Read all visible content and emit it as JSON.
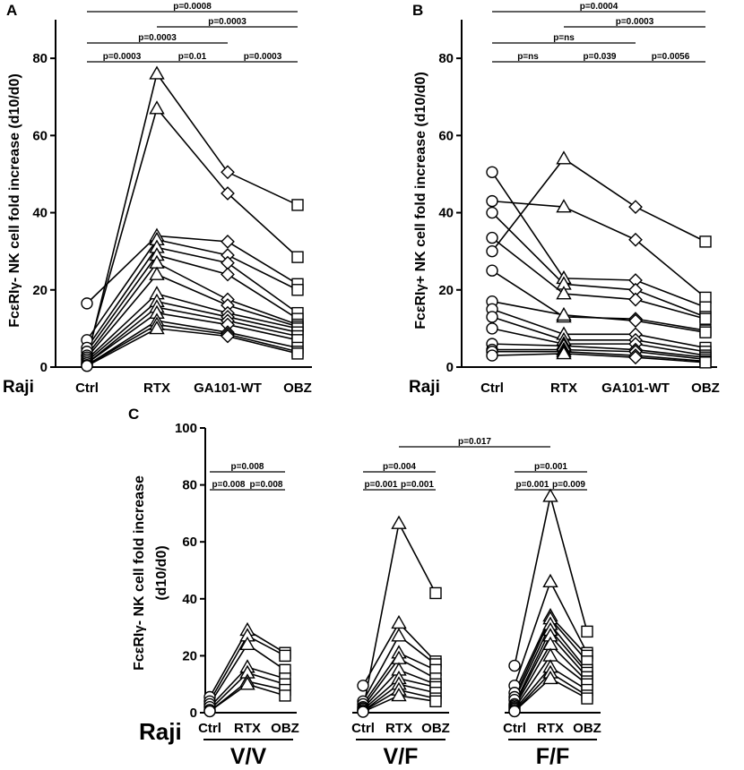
{
  "chart_data": [
    {
      "panel": "A",
      "type": "line",
      "title": "",
      "xlabel_prefix": "Raji",
      "ylabel_parts": [
        "Fc",
        "ε",
        "RI",
        "γ",
        "- NK cell fold increase (d10/d0)"
      ],
      "categories": [
        "Ctrl",
        "RTX",
        "GA101-WT",
        "OBZ"
      ],
      "markers": [
        "circle",
        "triangle",
        "diamond",
        "square"
      ],
      "ylim": [
        0,
        90
      ],
      "yticks": [
        0,
        20,
        40,
        60,
        80
      ],
      "series": [
        [
          2,
          76,
          50.5,
          42
        ],
        [
          3,
          67,
          45,
          28.5
        ],
        [
          16.5,
          34,
          32.5,
          21.5
        ],
        [
          7,
          33,
          29,
          20
        ],
        [
          5,
          31,
          27,
          14
        ],
        [
          4,
          29,
          24,
          12.5
        ],
        [
          3,
          27,
          17.5,
          11
        ],
        [
          2.5,
          24,
          16,
          10.5
        ],
        [
          2,
          19,
          14,
          10
        ],
        [
          1.5,
          17,
          13,
          9
        ],
        [
          1,
          15.5,
          12,
          8
        ],
        [
          1,
          14,
          11,
          7
        ],
        [
          0.5,
          12,
          9,
          5
        ],
        [
          0.5,
          11,
          8.5,
          4
        ],
        [
          0.3,
          10,
          8,
          3.5
        ]
      ],
      "comparisons": [
        {
          "from": "Ctrl",
          "to": "OBZ",
          "label": "p=0.0008"
        },
        {
          "from": "RTX",
          "to": "OBZ",
          "label": "p=0.0003"
        },
        {
          "from": "Ctrl",
          "to": "GA101-WT",
          "label": "p=0.0003"
        },
        {
          "from": "Ctrl",
          "to": "RTX",
          "label": "p=0.0003"
        },
        {
          "from": "RTX",
          "to": "GA101-WT",
          "label": "p=0.01"
        },
        {
          "from": "GA101-WT",
          "to": "OBZ",
          "label": "p=0.0003"
        }
      ]
    },
    {
      "panel": "B",
      "type": "line",
      "title": "",
      "xlabel_prefix": "Raji",
      "ylabel_parts": [
        "Fc",
        "ε",
        "RI",
        "γ",
        "+ NK cell fold increase (d10/d0)"
      ],
      "categories": [
        "Ctrl",
        "RTX",
        "GA101-WT",
        "OBZ"
      ],
      "markers": [
        "circle",
        "triangle",
        "diamond",
        "square"
      ],
      "ylim": [
        0,
        90
      ],
      "yticks": [
        0,
        20,
        40,
        60,
        80
      ],
      "series": [
        [
          30,
          54,
          41.5,
          32.5
        ],
        [
          43,
          41.5,
          33,
          18
        ],
        [
          50.5,
          23,
          22.5,
          15.5
        ],
        [
          40,
          21.5,
          20,
          13
        ],
        [
          33.5,
          19,
          17.5,
          12.5
        ],
        [
          25,
          13,
          12.5,
          9.5
        ],
        [
          17,
          13.5,
          12,
          9
        ],
        [
          15,
          8.5,
          8.5,
          5
        ],
        [
          13,
          7,
          7,
          4
        ],
        [
          10,
          6,
          6,
          3
        ],
        [
          6,
          5.5,
          4.5,
          2.5
        ],
        [
          4.5,
          4.5,
          4,
          2
        ],
        [
          4,
          4,
          3,
          1.5
        ],
        [
          3,
          3.5,
          2.5,
          1.2
        ]
      ],
      "comparisons": [
        {
          "from": "Ctrl",
          "to": "OBZ",
          "label": "p=0.0004"
        },
        {
          "from": "RTX",
          "to": "OBZ",
          "label": "p=0.0003"
        },
        {
          "from": "Ctrl",
          "to": "GA101-WT",
          "label": "p=ns"
        },
        {
          "from": "Ctrl",
          "to": "RTX",
          "label": "p=ns"
        },
        {
          "from": "RTX",
          "to": "GA101-WT",
          "label": "p=0.039"
        },
        {
          "from": "GA101-WT",
          "to": "OBZ",
          "label": "p=0.0056"
        }
      ]
    },
    {
      "panel": "C",
      "type": "line",
      "title": "",
      "xlabel_prefix": "Raji",
      "ylabel_line1": [
        "Fc",
        "ε",
        "RI",
        "γ",
        "- NK cell fold increase"
      ],
      "ylabel_line2": "(d10/d0)",
      "categories": [
        "Ctrl",
        "RTX",
        "OBZ"
      ],
      "markers": [
        "circle",
        "triangle",
        "square"
      ],
      "ylim": [
        0,
        100
      ],
      "yticks": [
        0,
        20,
        40,
        60,
        80,
        100
      ],
      "groups": [
        {
          "name": "V/V",
          "series": [
            [
              5.5,
              29,
              21
            ],
            [
              4,
              27,
              20
            ],
            [
              3,
              24,
              15
            ],
            [
              2,
              16,
              12
            ],
            [
              1,
              14,
              10
            ],
            [
              0.5,
              11,
              8
            ],
            [
              0.5,
              10,
              6
            ]
          ]
        },
        {
          "name": "V/F",
          "series": [
            [
              1,
              66.5,
              42
            ],
            [
              9.5,
              31.5,
              18
            ],
            [
              4,
              27,
              17
            ],
            [
              3,
              21,
              15
            ],
            [
              2,
              19,
              12
            ],
            [
              1.5,
              15,
              10
            ],
            [
              1,
              12,
              9
            ],
            [
              0.5,
              10,
              7
            ],
            [
              0.5,
              8,
              5
            ],
            [
              0.3,
              6,
              4
            ]
          ]
        },
        {
          "name": "F/F",
          "series": [
            [
              16.5,
              76,
              28.5
            ],
            [
              9.5,
              46,
              21
            ],
            [
              7,
              34,
              20
            ],
            [
              5.5,
              33,
              18
            ],
            [
              4.5,
              31,
              15
            ],
            [
              3,
              29,
              14
            ],
            [
              2.5,
              27,
              12.5
            ],
            [
              2,
              24,
              11
            ],
            [
              1.5,
              20,
              10
            ],
            [
              1,
              16,
              8
            ],
            [
              0.5,
              14,
              6
            ],
            [
              0.5,
              12,
              5
            ]
          ]
        }
      ],
      "comparisons": [
        {
          "group": "V/V",
          "from": "Ctrl",
          "to": "OBZ",
          "label": "p=0.008"
        },
        {
          "group": "V/V",
          "from": "Ctrl",
          "to": "RTX",
          "label": "p=0.008"
        },
        {
          "group": "V/V",
          "from": "RTX",
          "to": "OBZ",
          "label": "p=0.008"
        },
        {
          "group": "V/F",
          "from": "Ctrl",
          "to": "OBZ",
          "label": "p=0.004"
        },
        {
          "group": "V/F",
          "from": "Ctrl",
          "to": "RTX",
          "label": "p=0.001"
        },
        {
          "group": "V/F",
          "from": "RTX",
          "to": "OBZ",
          "label": "p=0.001"
        },
        {
          "group": "F/F",
          "from": "Ctrl",
          "to": "OBZ",
          "label": "p=0.001"
        },
        {
          "group": "F/F",
          "from": "Ctrl",
          "to": "RTX",
          "label": "p=0.001"
        },
        {
          "group": "F/F",
          "from": "RTX",
          "to": "OBZ",
          "label": "p=0.009"
        },
        {
          "cross": [
            "V/F",
            "RTX"
          ],
          "to": [
            "F/F",
            "RTX"
          ],
          "label": "p=0.017"
        }
      ]
    }
  ]
}
